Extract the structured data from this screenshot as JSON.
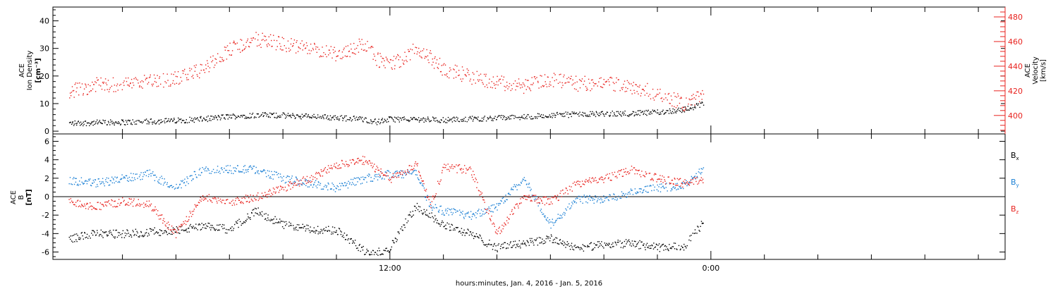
{
  "chart_data": [
    {
      "type": "scatter",
      "panel": "top",
      "left_axis": {
        "label_lines": [
          "ACE",
          "Ion Density",
          "[cm⁻³]"
        ],
        "ylim": [
          -1,
          45
        ],
        "ticks": [
          0,
          10,
          20,
          30,
          40
        ],
        "tick_labels": [
          "0",
          "10",
          "20",
          "30",
          "40"
        ]
      },
      "right_axis": {
        "label_lines": [
          "ACE",
          "Velocity",
          "[km/s]"
        ],
        "ylim": [
          385,
          488
        ],
        "ticks": [
          400,
          420,
          440,
          460,
          480
        ],
        "tick_labels": [
          "400",
          "420",
          "440",
          "460",
          "480"
        ],
        "color": "#e8231f"
      },
      "series": [
        {
          "axis": "left",
          "color": "#000000",
          "x": [
            0,
            1,
            2,
            3,
            4,
            5,
            6,
            7,
            8,
            9,
            10,
            11,
            11.5,
            12,
            13,
            14,
            15,
            16,
            17,
            18,
            19,
            20,
            21,
            22,
            23,
            23.7
          ],
          "y": [
            3,
            3.2,
            3.4,
            3.6,
            4,
            4.5,
            5.5,
            6,
            5.8,
            5.5,
            5,
            4.5,
            3.5,
            4.5,
            4.5,
            4.2,
            4.6,
            5,
            5.2,
            6,
            6.2,
            6.5,
            6.5,
            7,
            8,
            10
          ]
        },
        {
          "axis": "right",
          "color": "#e8231f",
          "x": [
            0,
            1,
            2,
            3,
            4,
            5,
            6,
            7,
            8,
            9,
            10,
            11,
            11.5,
            12,
            12.5,
            13,
            14,
            15,
            16,
            17,
            18,
            19,
            20,
            21,
            22,
            23,
            23.7
          ],
          "y": [
            420,
            425,
            426,
            428,
            430,
            438,
            454,
            462,
            458,
            454,
            450,
            458,
            446,
            442,
            447,
            456,
            438,
            432,
            427,
            424,
            430,
            426,
            427,
            424,
            418,
            410,
            416
          ]
        }
      ]
    },
    {
      "type": "scatter",
      "panel": "bottom",
      "axis": {
        "label_lines": [
          "ACE",
          "B",
          "[nT]"
        ],
        "ylim": [
          -6.8,
          6.8
        ],
        "ticks": [
          -6,
          -4,
          -2,
          0,
          2,
          4,
          6
        ],
        "tick_labels": [
          "-6",
          "-4",
          "-2",
          "0",
          "2",
          "4",
          "6"
        ]
      },
      "series": [
        {
          "name": "Bx",
          "color": "#000000",
          "x": [
            0,
            1,
            2,
            3,
            4,
            5,
            6,
            7,
            8,
            9,
            10,
            11,
            11.5,
            12,
            12.5,
            13,
            14,
            15,
            16,
            17,
            18,
            19,
            20,
            21,
            22,
            23,
            23.7
          ],
          "y": [
            -4.5,
            -4,
            -4,
            -3.8,
            -3.6,
            -3.2,
            -3.5,
            -1.5,
            -3,
            -3.5,
            -3.6,
            -5.8,
            -6,
            -5.5,
            -3,
            -1,
            -3,
            -4,
            -5.5,
            -5,
            -4.5,
            -5.5,
            -5.2,
            -5,
            -5.5,
            -5.3,
            -2.8
          ]
        },
        {
          "name": "By",
          "color": "#1a7fd4",
          "x": [
            0,
            1,
            2,
            3,
            4,
            5,
            6,
            7,
            8,
            9,
            10,
            11,
            12,
            13,
            13.5,
            14,
            15,
            16,
            17,
            18,
            19,
            20,
            21,
            22,
            23,
            23.7
          ],
          "y": [
            1.8,
            1.5,
            2,
            2.5,
            1,
            3,
            3,
            3,
            2,
            1.5,
            1,
            2,
            2.5,
            2.5,
            -1,
            -1.5,
            -2,
            -1,
            2,
            -3,
            -0.2,
            -0.3,
            0.5,
            1,
            1.2,
            3
          ]
        },
        {
          "name": "Bz",
          "color": "#e8231f",
          "x": [
            0,
            1,
            2,
            3,
            4,
            5,
            6,
            7,
            8,
            9,
            10,
            11,
            12,
            13,
            13.5,
            14,
            15,
            16,
            17,
            18,
            19,
            20,
            21,
            22,
            23,
            23.7
          ],
          "y": [
            -0.5,
            -1,
            -0.5,
            -0.8,
            -4,
            0,
            -0.5,
            0,
            1,
            2,
            3.5,
            4,
            2,
            3.5,
            -1,
            3.2,
            3,
            -4,
            0,
            -0.5,
            1.5,
            2,
            3,
            2,
            1.5,
            2
          ]
        }
      ],
      "legend": {
        "placement": "right",
        "entries": [
          {
            "base": "B",
            "sub": "x",
            "color": "#000000"
          },
          {
            "base": "B",
            "sub": "y",
            "color": "#1a7fd4"
          },
          {
            "base": "B",
            "sub": "z",
            "color": "#e8231f"
          }
        ]
      }
    }
  ],
  "x_axis": {
    "label": "hours:minutes, Jan.  4, 2016 - Jan.  5, 2016",
    "tick_labels": [
      {
        "hours": 12,
        "label": "12:00"
      },
      {
        "hours": 24,
        "label": "0:00"
      }
    ],
    "xlim": [
      -0.6,
      35.0
    ],
    "minor_tick_hours": [
      2,
      4,
      6,
      8,
      10,
      14,
      16,
      18,
      20,
      22,
      26,
      28,
      30,
      32,
      34
    ]
  }
}
